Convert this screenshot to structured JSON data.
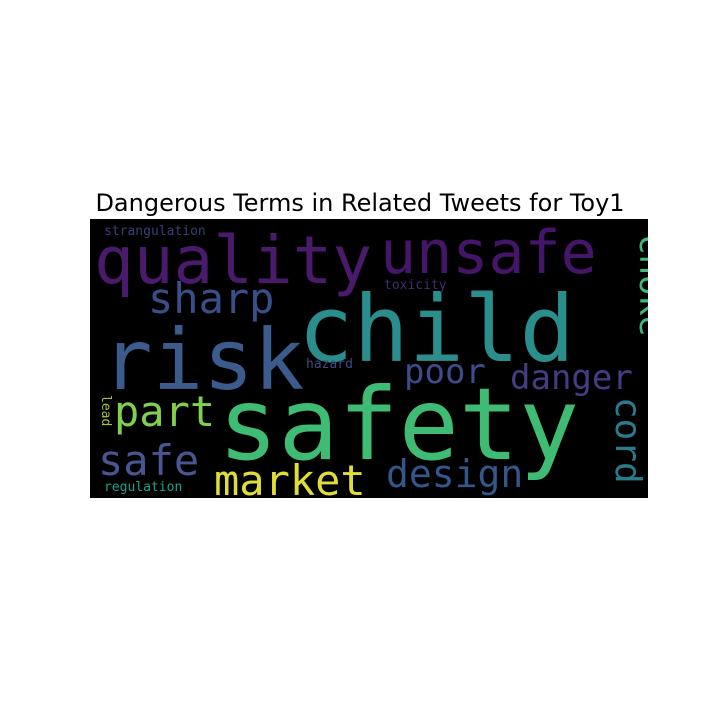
{
  "chart_data": {
    "type": "wordcloud",
    "title": "Dangerous Terms in Related Tweets for Toy1",
    "background": "#000000",
    "colormap": "viridis",
    "words": [
      {
        "text": "safety",
        "color": "#3fbc73"
      },
      {
        "text": "child",
        "color": "#2a8e8c"
      },
      {
        "text": "risk",
        "color": "#3b5b8c"
      },
      {
        "text": "quality",
        "color": "#4a1a6c"
      },
      {
        "text": "unsafe",
        "color": "#45156a"
      },
      {
        "text": "sharp",
        "color": "#3a4f89"
      },
      {
        "text": "choke",
        "color": "#3dbb74"
      },
      {
        "text": "market",
        "color": "#e1dd37"
      },
      {
        "text": "design",
        "color": "#33568b"
      },
      {
        "text": "danger",
        "color": "#433d84"
      },
      {
        "text": "poor",
        "color": "#3e4c8a"
      },
      {
        "text": "part",
        "color": "#81cf4f"
      },
      {
        "text": "safe",
        "color": "#4a5594"
      },
      {
        "text": "cord",
        "color": "#277c8e"
      },
      {
        "text": "toxicity",
        "color": "#3d2e70"
      },
      {
        "text": "hazard",
        "color": "#3f4a87"
      },
      {
        "text": "strangulation",
        "color": "#3a3e7a"
      },
      {
        "text": "regulation",
        "color": "#1fa187"
      },
      {
        "text": "lead",
        "color": "#9ec23a"
      }
    ]
  }
}
